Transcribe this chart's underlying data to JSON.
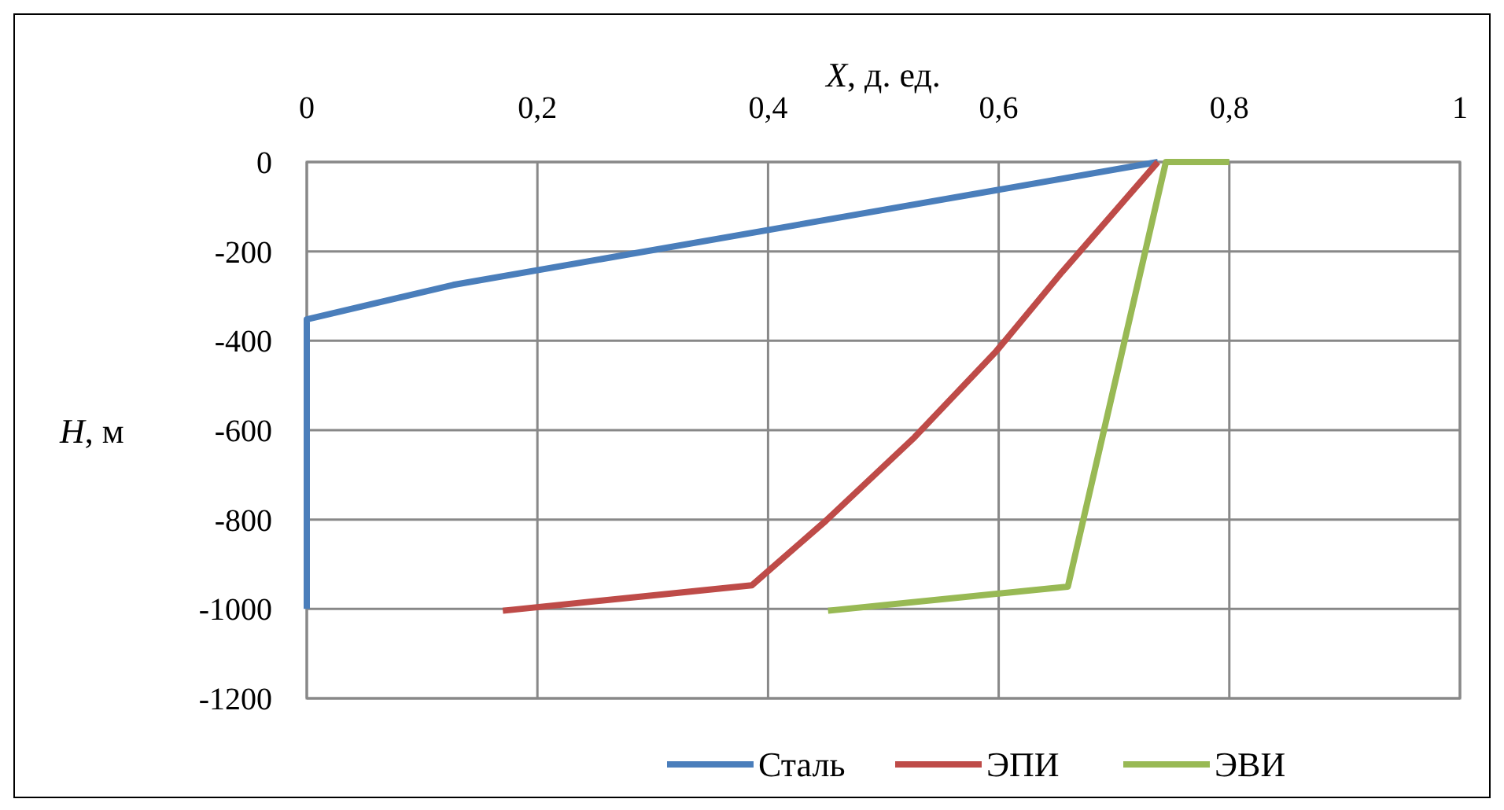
{
  "chart_data": {
    "type": "line",
    "xlabel": "X, д. ед.",
    "ylabel": "H, м",
    "xlim": [
      0,
      1
    ],
    "xticks": [
      0,
      {
        "value": 0.2,
        "label": "0,2"
      },
      {
        "value": 0.4,
        "label": "0,4"
      },
      {
        "value": 0.6,
        "label": "0,6"
      },
      {
        "value": 0.8,
        "label": "0,8"
      },
      1
    ],
    "ylim": [
      -1200,
      0
    ],
    "yticks": [
      -1200,
      -1000,
      -800,
      -600,
      -400,
      -200,
      0
    ],
    "grid": true,
    "legend": "bottom",
    "marker": "none",
    "line_style": "solid",
    "series": [
      {
        "name": "Сталь",
        "color": "#4a7ebb",
        "x": [
          0.738,
          0.127,
          0,
          0
        ],
        "values": [
          0,
          -275,
          -352,
          -1000
        ]
      },
      {
        "name": "ЭПИ",
        "color": "#be4b48",
        "x": [
          0.738,
          0.655,
          0.598,
          0.527,
          0.45,
          0.386,
          0.17
        ],
        "values": [
          0,
          -246,
          -423,
          -616,
          -803,
          -947,
          -1004
        ]
      },
      {
        "name": "ЭВИ",
        "color": "#98b954",
        "x": [
          0.8,
          0.745,
          0.66,
          0.452
        ],
        "values": [
          0,
          0,
          -950,
          -1004
        ]
      }
    ]
  }
}
